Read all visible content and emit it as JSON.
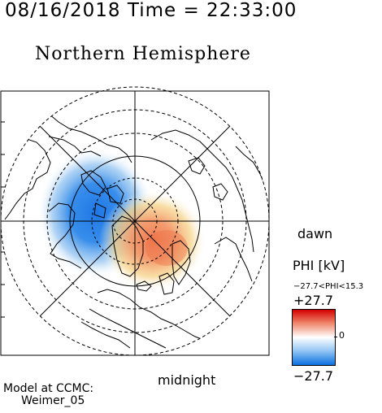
{
  "header": {
    "datetime": "08/16/2018 Time = 22:33:00"
  },
  "map": {
    "title": "Northern Hemisphere",
    "label_dawn": "dawn",
    "label_midnight": "midnight",
    "projection": "polar",
    "potential_colors": {
      "negative": "#1e78e6",
      "positive": "#f07850"
    }
  },
  "legend": {
    "quantity": "PHI [kV]",
    "range_text": "−27.7<PHI<15.3",
    "max_label": "+27.7",
    "zero_label": "0",
    "min_label": "−27.7",
    "colors": {
      "max": "#d40000",
      "mid": "#ffffff",
      "min": "#0a70e0"
    }
  },
  "credit": {
    "line1": "Model at CCMC:",
    "line2": "Weimer_05"
  }
}
